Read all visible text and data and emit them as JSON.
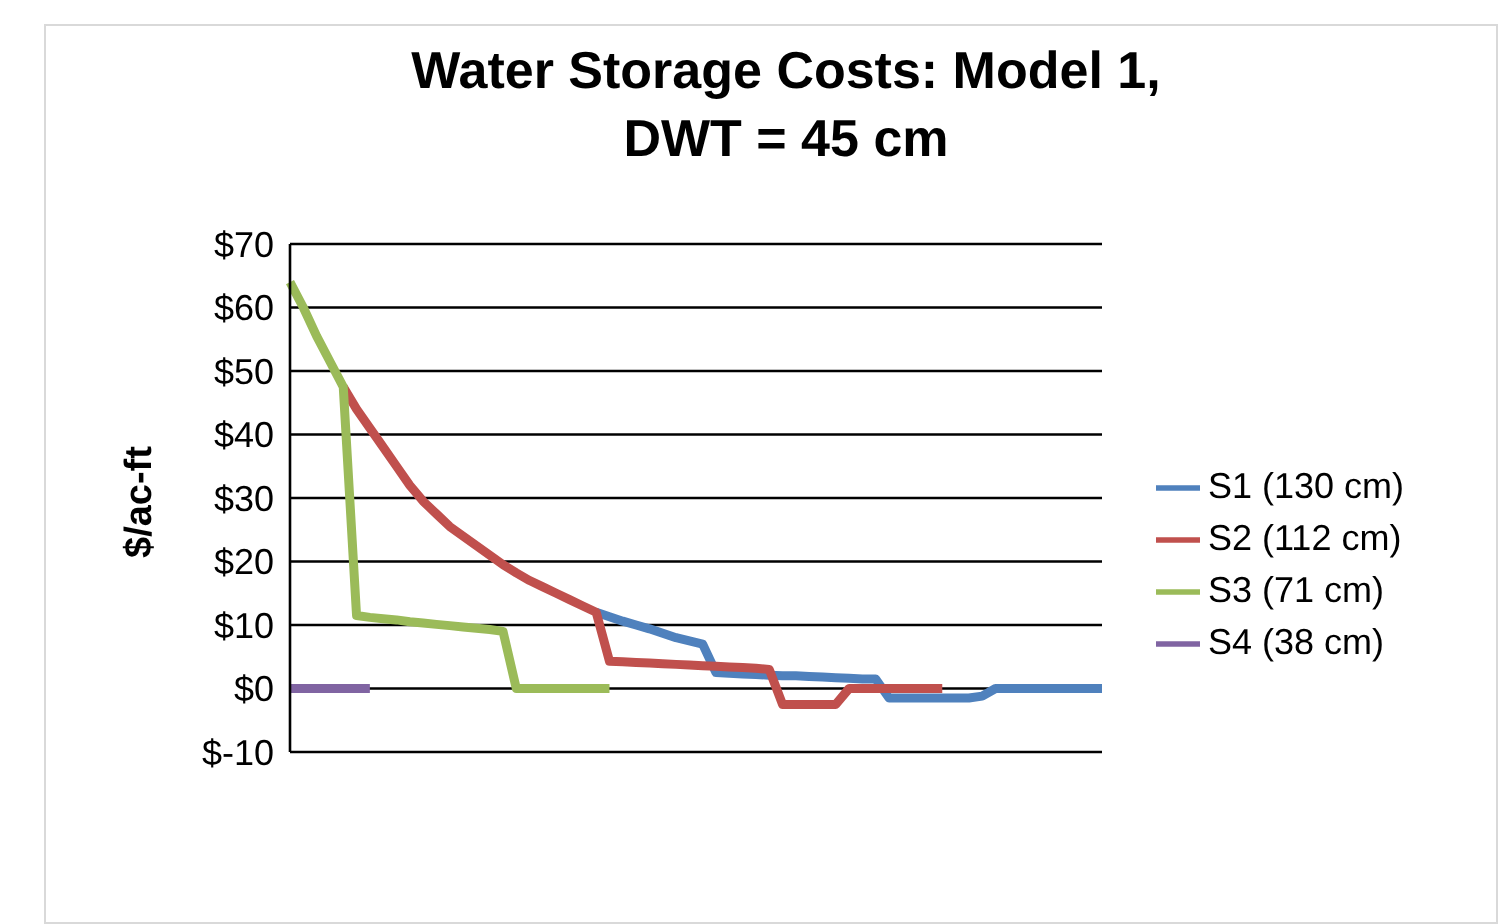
{
  "chart_data": {
    "type": "line",
    "title": "Water Storage Costs: Model 1, DWT = 45 cm",
    "ylabel": "$/ac-ft",
    "categories": [
      null,
      null,
      null,
      null,
      null,
      null,
      null,
      null,
      null,
      null,
      null,
      null,
      null,
      null,
      null,
      null,
      null,
      null,
      null,
      null,
      null,
      null,
      null,
      null,
      null,
      null,
      null,
      null,
      null,
      null,
      null,
      null,
      null,
      null,
      null,
      null,
      null,
      null,
      null,
      null,
      null,
      null,
      null,
      null,
      null,
      null,
      null,
      null,
      null,
      null,
      null,
      null,
      null,
      null,
      null,
      null,
      null,
      null,
      null,
      null,
      null,
      null
    ],
    "series": [
      {
        "name": "S1 (130 cm)",
        "color": "#4f81bd",
        "values": [
          null,
          null,
          null,
          null,
          null,
          null,
          null,
          null,
          null,
          null,
          null,
          null,
          null,
          null,
          null,
          null,
          null,
          null,
          null,
          null,
          null,
          null,
          null,
          12,
          11.3,
          10.6,
          10,
          9.4,
          8.7,
          8,
          7.5,
          7,
          2.5,
          2.4,
          2.3,
          2.2,
          2.1,
          2,
          2,
          1.9,
          1.8,
          1.7,
          1.6,
          1.5,
          1.5,
          -1.5,
          -1.5,
          -1.5,
          -1.5,
          -1.5,
          -1.5,
          -1.5,
          -1.2,
          0,
          0,
          0,
          0,
          0,
          0,
          0,
          0,
          0
        ]
      },
      {
        "name": "S2 (112 cm)",
        "color": "#c0504d",
        "values": [
          null,
          null,
          null,
          null,
          47.5,
          44,
          41,
          38,
          35,
          32,
          29.5,
          27.5,
          25.5,
          24,
          22.5,
          21,
          19.5,
          18.2,
          17,
          16,
          15,
          14,
          13,
          12,
          4.3,
          4.2,
          4.1,
          4,
          3.9,
          3.8,
          3.7,
          3.6,
          3.5,
          3.4,
          3.3,
          3.2,
          3,
          -2.5,
          -2.5,
          -2.5,
          -2.5,
          -2.5,
          0,
          0,
          0,
          0,
          0,
          0,
          0,
          0,
          null,
          null,
          null,
          null,
          null,
          null,
          null,
          null,
          null,
          null,
          null,
          null
        ]
      },
      {
        "name": "S3 (71 cm)",
        "color": "#9bbb59",
        "values": [
          64,
          60,
          55.5,
          51.5,
          47.5,
          11.5,
          11.2,
          11,
          10.8,
          10.5,
          10.3,
          10.1,
          9.9,
          9.7,
          9.5,
          9.3,
          9,
          0,
          0,
          0,
          0,
          0,
          0,
          0,
          0,
          null,
          null,
          null,
          null,
          null,
          null,
          null,
          null,
          null,
          null,
          null,
          null,
          null,
          null,
          null,
          null,
          null,
          null,
          null,
          null,
          null,
          null,
          null,
          null,
          null,
          null,
          null,
          null,
          null,
          null,
          null,
          null,
          null,
          null,
          null,
          null,
          null
        ]
      },
      {
        "name": "S4 (38 cm)",
        "color": "#8064a2",
        "values": [
          0,
          0,
          0,
          0,
          0,
          0,
          0,
          null,
          null,
          null,
          null,
          null,
          null,
          null,
          null,
          null,
          null,
          null,
          null,
          null,
          null,
          null,
          null,
          null,
          null,
          null,
          null,
          null,
          null,
          null,
          null,
          null,
          null,
          null,
          null,
          null,
          null,
          null,
          null,
          null,
          null,
          null,
          null,
          null,
          null,
          null,
          null,
          null,
          null,
          null,
          null,
          null,
          null,
          null,
          null,
          null,
          null,
          null,
          null,
          null,
          null,
          null
        ]
      }
    ],
    "ylim": [
      -10,
      70
    ],
    "yticks": [
      {
        "value": -10,
        "label": "$-10"
      },
      {
        "value": 0,
        "label": "$0"
      },
      {
        "value": 10,
        "label": "$10"
      },
      {
        "value": 20,
        "label": "$20"
      },
      {
        "value": 30,
        "label": "$30"
      },
      {
        "value": 40,
        "label": "$40"
      },
      {
        "value": 50,
        "label": "$50"
      },
      {
        "value": 60,
        "label": "$60"
      },
      {
        "value": 70,
        "label": "$70"
      }
    ],
    "grid": "y",
    "legend": "right",
    "marker": "none",
    "line_style": "solid",
    "tick_labels": "y"
  }
}
